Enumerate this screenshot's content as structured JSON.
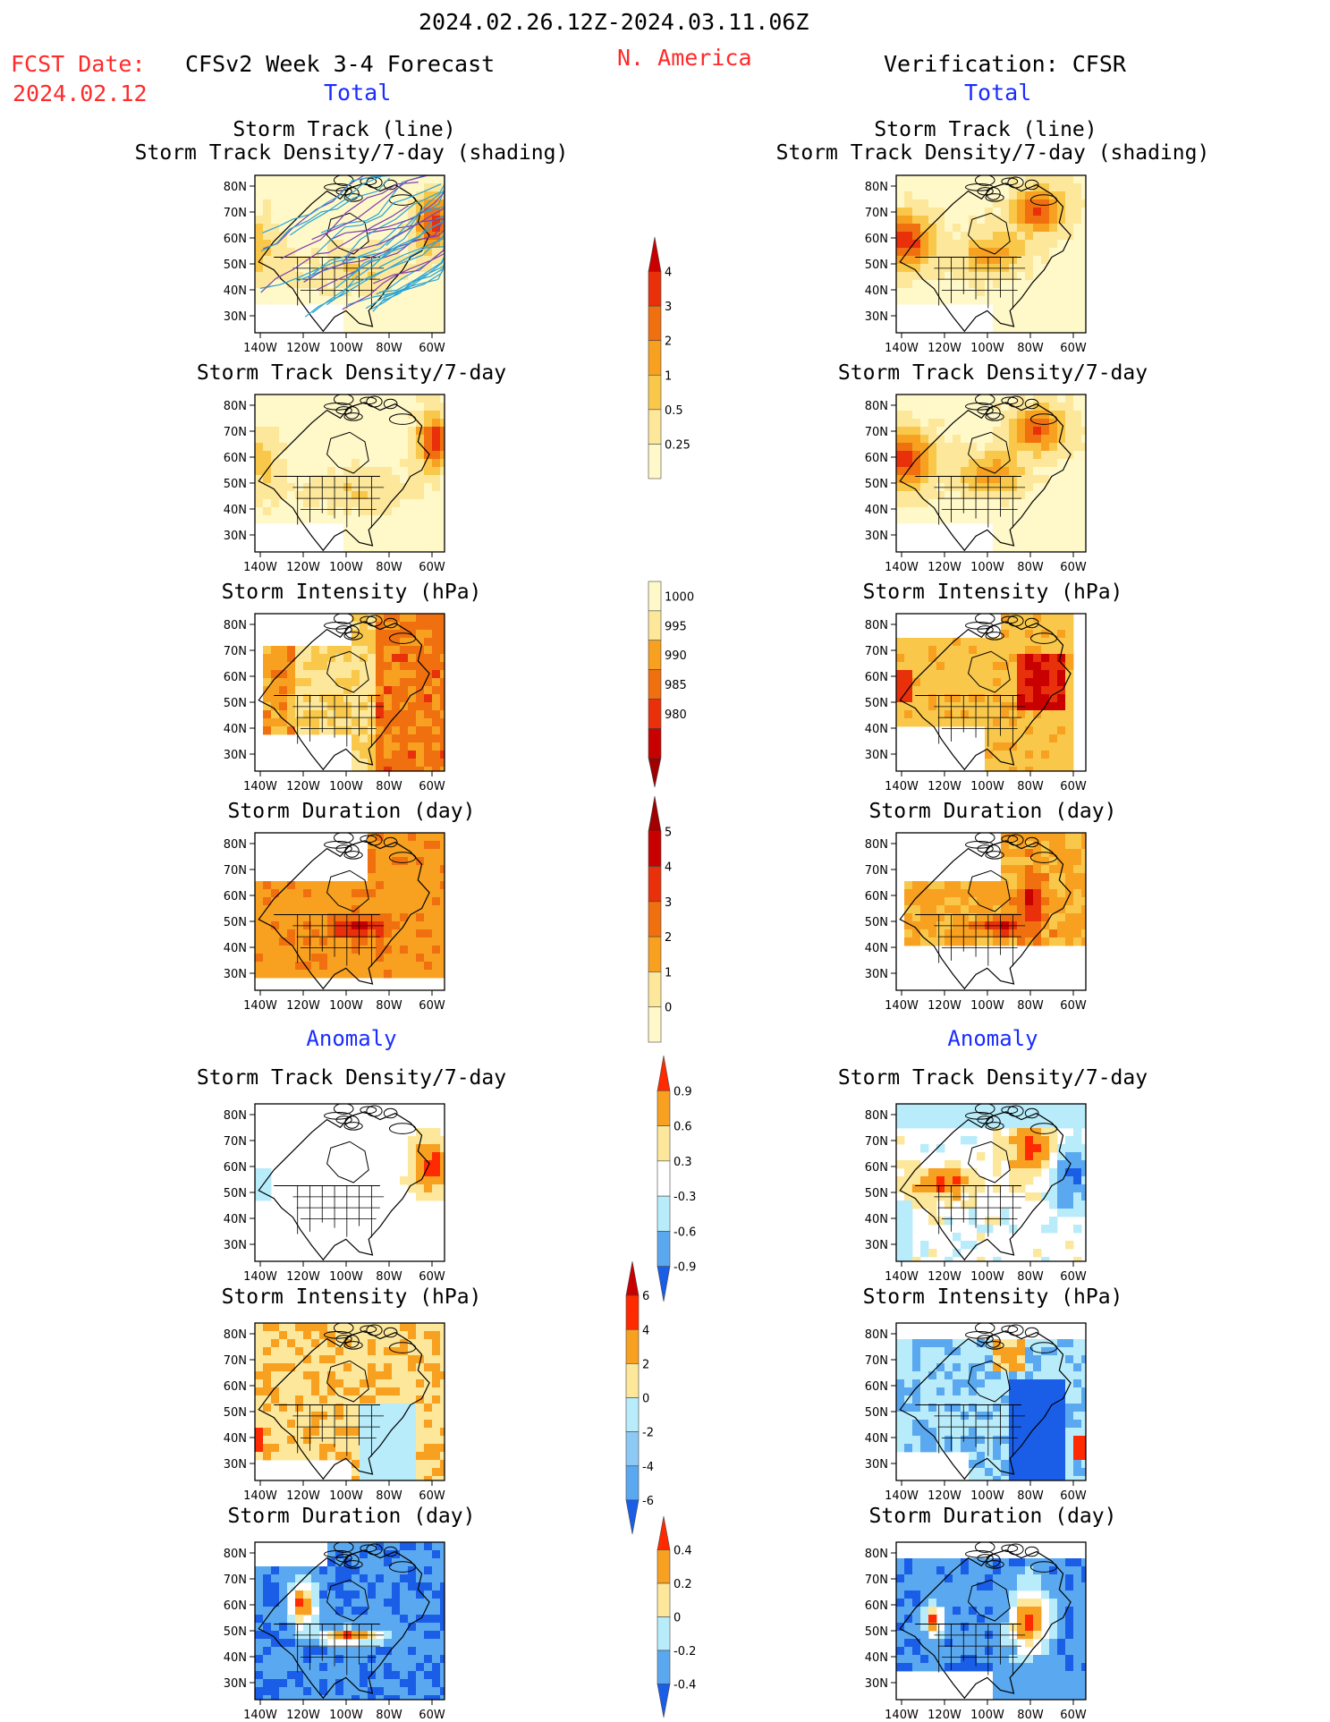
{
  "header": {
    "date_range": "2024.02.26.12Z-2024.03.11.06Z",
    "fcst_label": "FCST Date:",
    "fcst_date": "2024.02.12",
    "model_title": "CFSv2 Week 3-4 Forecast",
    "region": "N. America",
    "verification": "Verification: CFSR"
  },
  "sections": {
    "total": "Total",
    "anomaly": "Anomaly"
  },
  "panel_titles": {
    "track_line": "Storm Track (line)",
    "track_shading": "Storm Track Density/7-day (shading)",
    "density": "Storm Track Density/7-day",
    "intensity": "Storm Intensity (hPa)",
    "duration": "Storm Duration (day)"
  },
  "axes": {
    "lat_ticks": [
      "80N",
      "70N",
      "60N",
      "50N",
      "40N",
      "30N"
    ],
    "lon_ticks": [
      "140W",
      "120W",
      "100W",
      "80W",
      "60W"
    ]
  },
  "colorbars": {
    "density_total": {
      "labels": [
        "4",
        "3",
        "2",
        "1",
        "0.5",
        "0.25"
      ],
      "colors": [
        "#c80000",
        "#e8300a",
        "#f07010",
        "#f8a020",
        "#f9c84a",
        "#fde79a",
        "#fff8c8"
      ]
    },
    "intensity_total": {
      "labels": [
        "1000",
        "995",
        "990",
        "985",
        "980"
      ],
      "colors": [
        "#fff8c8",
        "#fde79a",
        "#f8a020",
        "#f07010",
        "#e8300a",
        "#c80000",
        "#a00000"
      ]
    },
    "duration_total": {
      "labels": [
        "5",
        "4",
        "3",
        "2",
        "1",
        "0"
      ],
      "colors": [
        "#a00000",
        "#c80000",
        "#e8300a",
        "#f07010",
        "#f8a020",
        "#fde79a",
        "#fff8c8"
      ]
    },
    "density_anom": {
      "labels": [
        "0.9",
        "0.6",
        "0.3",
        "-0.3",
        "-0.6",
        "-0.9"
      ],
      "colors": [
        "#ff2a00",
        "#f8a020",
        "#fde79a",
        "#ffffff",
        "#b8ecfa",
        "#5aa8f0",
        "#1a5ee8"
      ]
    },
    "intensity_anom": {
      "labels": [
        "6",
        "4",
        "2",
        "0",
        "-2",
        "-4",
        "-6"
      ],
      "colors": [
        "#c80000",
        "#ff2a00",
        "#f8a020",
        "#fde79a",
        "#b8ecfa",
        "#8ccaf5",
        "#5aa8f0",
        "#1a5ee8"
      ]
    },
    "duration_anom": {
      "labels": [
        "0.4",
        "0.2",
        "0",
        "-0.2",
        "-0.4"
      ],
      "colors": [
        "#ff2a00",
        "#f8a020",
        "#fde79a",
        "#b8ecfa",
        "#5aa8f0",
        "#1a5ee8"
      ]
    }
  },
  "legend_colors": {
    "land_outline": "#000000",
    "track_line": "#29a3d6",
    "track_line_dense": "#7a3fb0"
  }
}
